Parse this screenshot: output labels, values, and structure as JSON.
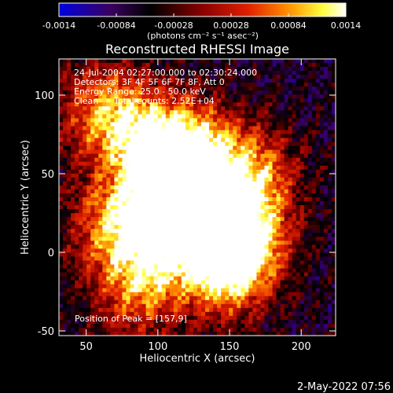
{
  "colorbar": {
    "tick_labels": [
      "-0.0014",
      "-0.00084",
      "-0.00028",
      "0.00028",
      "0.00084",
      "0.0014"
    ],
    "tick_values": [
      -0.0014,
      -0.00084,
      -0.00028,
      0.00028,
      0.00084,
      0.0014
    ],
    "range": [
      -0.0014,
      0.0014
    ],
    "units_label": "(photons cm⁻² s⁻¹ asec⁻²)",
    "colors": [
      "#0000e0",
      "#3a0060",
      "#000000",
      "#8a0000",
      "#e02000",
      "#ff9000",
      "#ffff40",
      "#ffffff"
    ]
  },
  "chart_data": {
    "type": "heatmap",
    "title": "Reconstructed RHESSI Image",
    "xlabel": "Heliocentric X (arcsec)",
    "ylabel": "Heliocentric Y (arcsec)",
    "xlim": [
      31,
      224
    ],
    "ylim": [
      -53,
      123
    ],
    "x_ticks": [
      50,
      100,
      150,
      200
    ],
    "y_ticks": [
      -50,
      0,
      50,
      100
    ],
    "peak": [
      157,
      9
    ],
    "sources": [
      {
        "x": 125,
        "y": 62,
        "intensity": 0.0012
      },
      {
        "x": 108,
        "y": 42,
        "intensity": 0.0008
      },
      {
        "x": 90,
        "y": 75,
        "intensity": 0.0007
      },
      {
        "x": 70,
        "y": 18,
        "intensity": 0.0007
      },
      {
        "x": 105,
        "y": 14,
        "intensity": 0.0009
      },
      {
        "x": 157,
        "y": 9,
        "intensity": 0.0014
      },
      {
        "x": 145,
        "y": -10,
        "intensity": 0.001
      },
      {
        "x": 165,
        "y": 48,
        "intensity": 0.0008
      },
      {
        "x": 60,
        "y": 90,
        "intensity": 0.0006
      },
      {
        "x": 85,
        "y": -25,
        "intensity": 0.0006
      }
    ],
    "grid": false,
    "legend": "none"
  },
  "annotations": {
    "time_range": "24-Jul-2004 02:27:00.000 to 02:30:24.000",
    "detectors": "Detectors: 3F 4F 5F 6F 7F 8F, Att 0",
    "energy_range": "Energy Range: 25.0 - 50.0 keV",
    "clean_prefix": "Clean",
    "total_counts": "Total counts: 2.52E+04",
    "peak_label": "Position of Peak = [157,9]"
  },
  "footer": {
    "date": "2-May-2022 07:56"
  }
}
